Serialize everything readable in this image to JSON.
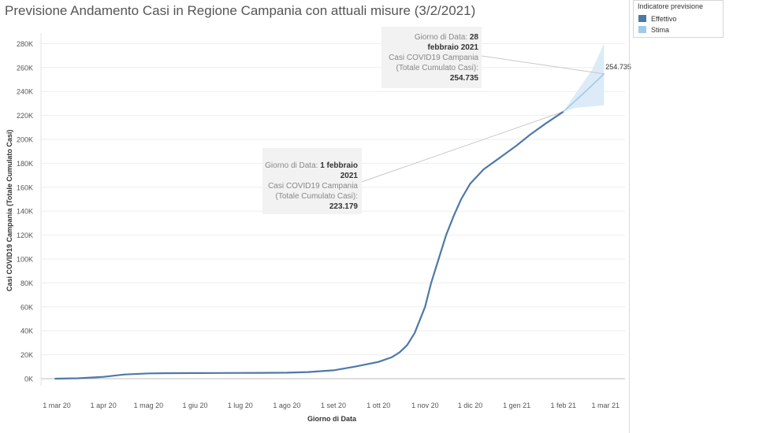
{
  "title": "Previsione Andamento Casi in Regione Campania con attuali misure (3/2/2021)",
  "legend": {
    "title": "Indicatore previsione",
    "items": [
      {
        "label": "Effettivo",
        "color": "#4e79a7"
      },
      {
        "label": "Stima",
        "color": "#a0cbe8"
      }
    ]
  },
  "tooltips": [
    {
      "date_label": "Giorno di Data:",
      "date_value_1": "1 febbraio",
      "date_value_2": "2021",
      "measure_line1": "Casi COVID19 Campania",
      "measure_line2": "(Totale Cumulato Casi):",
      "measure_value": "223.179"
    },
    {
      "date_label": "Giorno di Data:",
      "date_value_1": "28",
      "date_value_2": "febbraio 2021",
      "measure_line1": "Casi COVID19 Campania",
      "measure_line2": "(Totale Cumulato Casi):",
      "measure_value": "254.735"
    }
  ],
  "chart_data": {
    "type": "line",
    "xlabel": "Giorno di Data",
    "ylabel": "Casi COVID19 Campania (Totale Cumulato Casi)",
    "x_ticks": [
      "1 mar 20",
      "1 apr 20",
      "1 mag 20",
      "1 giu 20",
      "1 lug 20",
      "1 ago 20",
      "1 set 20",
      "1 ott 20",
      "1 nov 20",
      "1 dic 20",
      "1 gen 21",
      "1 feb 21",
      "1 mar 21"
    ],
    "y_ticks": [
      "0K",
      "20K",
      "40K",
      "60K",
      "80K",
      "100K",
      "120K",
      "140K",
      "160K",
      "180K",
      "200K",
      "220K",
      "240K",
      "260K",
      "280K"
    ],
    "ylim": [
      0,
      290000
    ],
    "xlim": [
      "2020-02-20",
      "2021-03-14"
    ],
    "grid": true,
    "series": [
      {
        "name": "Effettivo",
        "color": "#4e79a7",
        "x": [
          "2020-02-29",
          "2020-03-15",
          "2020-04-01",
          "2020-04-15",
          "2020-05-01",
          "2020-05-15",
          "2020-06-01",
          "2020-06-15",
          "2020-07-01",
          "2020-07-15",
          "2020-08-01",
          "2020-08-15",
          "2020-09-01",
          "2020-09-15",
          "2020-10-01",
          "2020-10-10",
          "2020-10-15",
          "2020-10-20",
          "2020-10-25",
          "2020-11-01",
          "2020-11-05",
          "2020-11-10",
          "2020-11-15",
          "2020-11-20",
          "2020-11-25",
          "2020-12-01",
          "2020-12-10",
          "2020-12-20",
          "2021-01-01",
          "2021-01-10",
          "2021-01-20",
          "2021-02-01"
        ],
        "values": [
          0,
          300,
          1500,
          3500,
          4400,
          4600,
          4700,
          4750,
          4800,
          4850,
          5000,
          5500,
          7000,
          10000,
          14000,
          18000,
          22000,
          28000,
          38000,
          60000,
          80000,
          100000,
          120000,
          136000,
          150000,
          163000,
          175000,
          184000,
          195000,
          204000,
          213000,
          223179
        ]
      },
      {
        "name": "Stima",
        "color": "#a0cbe8",
        "x": [
          "2021-02-01",
          "2021-02-10",
          "2021-02-20",
          "2021-02-28"
        ],
        "values": [
          223179,
          233500,
          245000,
          254735
        ],
        "upper": [
          223179,
          240000,
          258000,
          280000
        ],
        "lower": [
          223179,
          226500,
          227500,
          228500
        ]
      }
    ],
    "annotations": [
      {
        "x": "2021-02-28",
        "text": "254.735"
      }
    ]
  }
}
